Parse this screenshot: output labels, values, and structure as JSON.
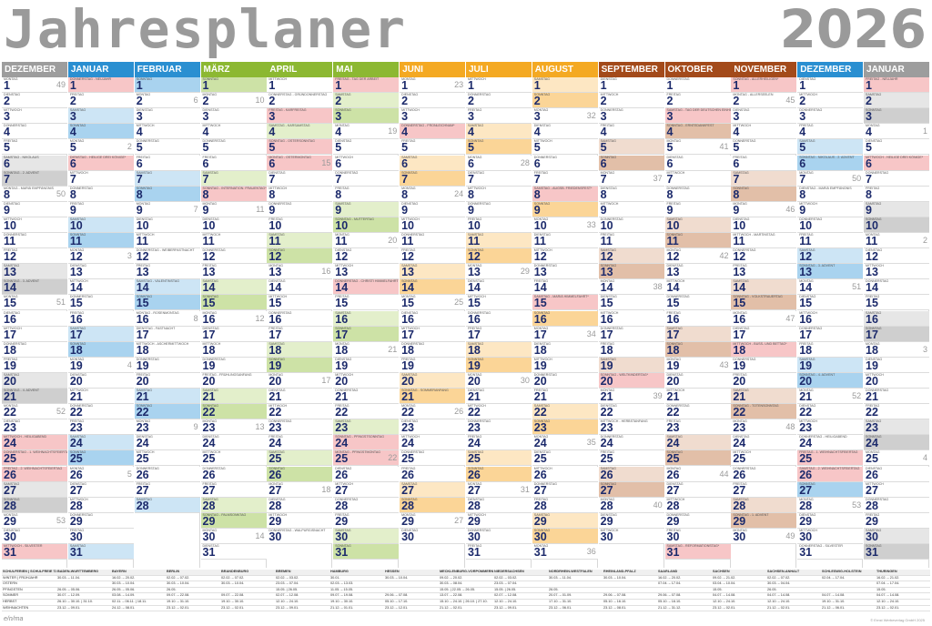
{
  "title": "Jahresplaner",
  "year": "2026",
  "weekdays": [
    "MONTAG",
    "DIENSTAG",
    "MITTWOCH",
    "DONNERSTAG",
    "FREITAG",
    "SAMSTAG",
    "SONNTAG"
  ],
  "colors": {
    "gray": "#9d9d9d",
    "blue": "#2a8fd1",
    "green": "#8cb832",
    "orange": "#f4a922",
    "brown": "#a34a1a",
    "holiday": "#f7c6c7",
    "saturday_blue": "#cde5f5",
    "sunday_blue": "#a9d3ef",
    "saturday_green": "#e3efcb",
    "sunday_green": "#cde2a6",
    "saturday_orange": "#fde7c3",
    "sunday_orange": "#fbd597",
    "saturday_brown": "#f0dccf",
    "sunday_brown": "#e2bfa8",
    "saturday_gray": "#e6e6e6",
    "sunday_gray": "#cfcfcf"
  },
  "months": [
    {
      "name": "DEZEMBER",
      "theme": "gray",
      "first_weekday": 0,
      "days": 31,
      "week_start": 49,
      "holidays": {
        "24": "MITTWOCH - HEILIGABEND",
        "25": "DONNERSTAG - 1. WEIHNACHTSFEIERTAG",
        "26": "FREITAG - 2. WEIHNACHTSFEIERTAG",
        "31": "MITTWOCH - SILVESTER"
      },
      "notes": {
        "6": "SAMSTAG - NIKOLAUS",
        "7": "SONNTAG - 2. ADVENT",
        "8": "MONTAG - MARIÄ EMPFÄNGNIS",
        "14": "SONNTAG - 3. ADVENT",
        "21": "SONNTAG - 4. ADVENT"
      }
    },
    {
      "name": "JANUAR",
      "theme": "blue",
      "first_weekday": 3,
      "days": 31,
      "week_start": 1,
      "holidays": {
        "1": "DONNERSTAG - NEUJAHR",
        "6": "DIENSTAG - HEILIGE DREI KÖNIGE*"
      },
      "notes": {}
    },
    {
      "name": "FEBRUAR",
      "theme": "blue",
      "first_weekday": 6,
      "days": 28,
      "week_start": 5,
      "holidays": {},
      "notes": {
        "12": "DONNERSTAG - WEIBERFASTNACHT",
        "14": "SAMSTAG - VALENTINSTAG",
        "16": "MONTAG - ROSENMONTAG",
        "17": "DIENSTAG - FASTNACHT",
        "18": "MITTWOCH - ASCHERMITTWOCH"
      }
    },
    {
      "name": "MÄRZ",
      "theme": "green",
      "first_weekday": 6,
      "days": 31,
      "week_start": 9,
      "holidays": {
        "8": "SONNTAG - INTERNATION. FRAUENTAG*"
      },
      "notes": {
        "20": "FREITAG - FRÜHLINGSANFANG",
        "29": "SONNTAG - PALMSONNTAG"
      }
    },
    {
      "name": "APRIL",
      "theme": "green",
      "first_weekday": 2,
      "days": 30,
      "week_start": 14,
      "holidays": {
        "3": "FREITAG - KARFREITAG",
        "5": "SONNTAG - OSTERSONNTAG",
        "6": "MONTAG - OSTERMONTAG"
      },
      "notes": {
        "2": "DONNERSTAG - GRÜNDONNERSTAG",
        "4": "SAMSTAG - KARSAMSTAG",
        "30": "DONNERSTAG - WALPURGISNACHT"
      }
    },
    {
      "name": "MAI",
      "theme": "green",
      "first_weekday": 4,
      "days": 31,
      "week_start": 18,
      "holidays": {
        "1": "FREITAG - TAG DER ARBEIT",
        "14": "DONNERSTAG - CHRISTI HIMMELFAHRT",
        "24": "SONNTAG - PFINGSTSONNTAG",
        "25": "MONTAG - PFINGSTMONTAG"
      },
      "notes": {
        "10": "SONNTAG - MUTTERTAG"
      }
    },
    {
      "name": "JUNI",
      "theme": "orange",
      "first_weekday": 0,
      "days": 30,
      "week_start": 23,
      "holidays": {
        "4": "DONNERSTAG - FRONLEICHNAM*"
      },
      "notes": {
        "21": "SONNTAG - SOMMERANFANG"
      }
    },
    {
      "name": "JULI",
      "theme": "orange",
      "first_weekday": 2,
      "days": 31,
      "week_start": 27,
      "holidays": {},
      "notes": {}
    },
    {
      "name": "AUGUST",
      "theme": "orange",
      "first_weekday": 5,
      "days": 31,
      "week_start": 31,
      "holidays": {
        "8": "SAMSTAG - AUGSB. FRIEDENSFEST*",
        "15": "SAMSTAG - MARIÄ HIMMELFAHRT*"
      },
      "notes": {}
    },
    {
      "name": "SEPTEMBER",
      "theme": "brown",
      "first_weekday": 1,
      "days": 30,
      "week_start": 36,
      "holidays": {
        "20": "SONNTAG - WELTKINDERTAG*"
      },
      "notes": {
        "23": "MITTWOCH - HERBSTANFANG"
      }
    },
    {
      "name": "OKTOBER",
      "theme": "brown",
      "first_weekday": 3,
      "days": 31,
      "week_start": 40,
      "holidays": {
        "3": "SAMSTAG - TAG DER DEUTSCHEN EINHEIT",
        "31": "SAMSTAG - REFORMATIONSTAG*"
      },
      "notes": {
        "4": "SONNTAG - ERNTEDANKFEST"
      }
    },
    {
      "name": "NOVEMBER",
      "theme": "brown",
      "first_weekday": 6,
      "days": 30,
      "week_start": 44,
      "holidays": {
        "1": "SONNTAG - ALLERHEILIGEN*",
        "18": "MITTWOCH - BUSS- UND BETTAG*"
      },
      "notes": {
        "2": "MONTAG - ALLERSEELEN",
        "11": "MITTWOCH - MARTINSTAG",
        "15": "SONNTAG - VOLKSTRAUERTAG",
        "22": "SONNTAG - TOTENSONNTAG",
        "29": "SONNTAG - 1. ADVENT"
      }
    },
    {
      "name": "DEZEMBER",
      "theme": "blue",
      "first_weekday": 1,
      "days": 31,
      "week_start": 49,
      "holidays": {
        "25": "FREITAG - 1. WEIHNACHTSFEIERTAG",
        "26": "SAMSTAG - 2. WEIHNACHTSFEIERTAG"
      },
      "notes": {
        "6": "SONNTAG - NIKOLAUS - 2. ADVENT",
        "8": "DIENSTAG - MARIÄ EMPFÄNGNIS",
        "13": "SONNTAG - 3. ADVENT",
        "20": "SONNTAG - 4. ADVENT",
        "24": "DONNERSTAG - HEILIGABEND",
        "31": "DONNERSTAG - SILVESTER"
      }
    },
    {
      "name": "JANUAR",
      "theme": "gray",
      "first_weekday": 4,
      "days": 31,
      "week_start": 53,
      "holidays": {
        "1": "FREITAG - NEUJAHR",
        "6": "MITTWOCH - HEILIGE DREI KÖNIGE*"
      },
      "notes": {}
    }
  ],
  "footer": {
    "rows": [
      [
        "SCHULFERIEN | SCHULFREIE TAGE",
        "BADEN-WÜRTTEMBERG",
        "BAYERN",
        "BERLIN",
        "BRANDENBURG",
        "BREMEN",
        "HAMBURG",
        "HESSEN",
        "MECKLENBURG-VORPOMMERN",
        "NIEDERSACHSEN",
        "NORDRHEIN-WESTFALEN",
        "RHEINLAND-PFALZ",
        "SAARLAND",
        "SACHSEN",
        "SACHSEN-ANHALT",
        "SCHLESWIG-HOLSTEIN",
        "THÜRINGEN"
      ],
      [
        "WINTER | FRÜHJAHR",
        "30.03. – 11.04.",
        "16.02. – 20.02.",
        "02.02. – 07.02.",
        "02.02. – 07.02.",
        "02.02. – 03.02.",
        "30.01.",
        "30.03. – 10.04.",
        "09.02. – 20.02.",
        "02.02. – 03.02.",
        "30.03. – 11.04.",
        "30.03. – 10.04.",
        "16.02. – 20.02.",
        "09.02. – 21.02.",
        "02.02. – 07.02.",
        "02.04. – 17.04.",
        "16.02. – 21.02."
      ],
      [
        "OSTERN",
        "",
        "30.03. – 10.04.",
        "30.03. – 10.04.",
        "30.03. – 10.04.",
        "23.03. – 07.04.",
        "02.03. – 13.03.",
        "",
        "30.03. – 08.04.",
        "23.03. – 07.04.",
        "",
        "",
        "07.04. – 17.04.",
        "03.04. – 10.04.",
        "30.03. – 04.04.",
        "",
        "07.04. – 17.04."
      ],
      [
        "PFINGSTEN",
        "26.05. – 05.06.",
        "26.05. – 05.06.",
        "26.05.",
        "",
        "15.05. | 26.05.",
        "11.05. – 15.05.",
        "",
        "15.05. | 22.05. – 26.05.",
        "15.05. | 26.05.",
        "26.05.",
        "",
        "",
        "15.05.",
        "26.05.",
        "",
        "15.05."
      ],
      [
        "SOMMER",
        "30.07. – 12.09.",
        "03.08. – 14.09.",
        "09.07. – 22.08.",
        "09.07. – 22.08.",
        "02.07. – 12.08.",
        "09.07. – 19.08.",
        "29.06. – 07.08.",
        "13.07. – 22.08.",
        "02.07. – 12.08.",
        "20.07. – 01.09.",
        "29.06. – 07.08.",
        "29.06. – 07.08.",
        "04.07. – 14.08.",
        "04.07. – 14.08.",
        "04.07. – 14.08.",
        "04.07. – 14.08."
      ],
      [
        "HERBST",
        "26.10. – 30.10. | 31.10.",
        "02.11. – 06.11. | 18.11.",
        "19.10. – 31.10.",
        "19.10. – 30.10.",
        "12.10. – 24.10.",
        "19.10. – 30.10.",
        "05.10. – 17.10.",
        "15.10. – 24.10. | 26.10. | 27.10.",
        "12.10. – 24.10.",
        "17.10. – 31.10.",
        "05.10. – 16.10.",
        "05.10. – 16.10.",
        "12.10. – 24.10.",
        "12.10. – 24.10.",
        "19.10. – 31.10.",
        "12.10. – 24.10."
      ],
      [
        "WEIHNACHTEN",
        "23.12. – 09.01.",
        "24.12. – 08.01.",
        "23.12. – 02.01.",
        "23.12. – 02.01.",
        "23.12. – 09.01.",
        "21.12. – 01.01.",
        "23.12. – 12.01.",
        "21.12. – 02.01.",
        "23.12. – 09.01.",
        "23.12. – 06.01.",
        "23.12. – 08.01.",
        "21.12. – 31.12.",
        "23.12. – 02.01.",
        "21.12. – 02.01.",
        "21.12. – 06.01.",
        "23.12. – 02.01."
      ]
    ]
  },
  "logo": "e/n/ma",
  "copyright": "© Ernst Werbeverlag GmbH 2025"
}
